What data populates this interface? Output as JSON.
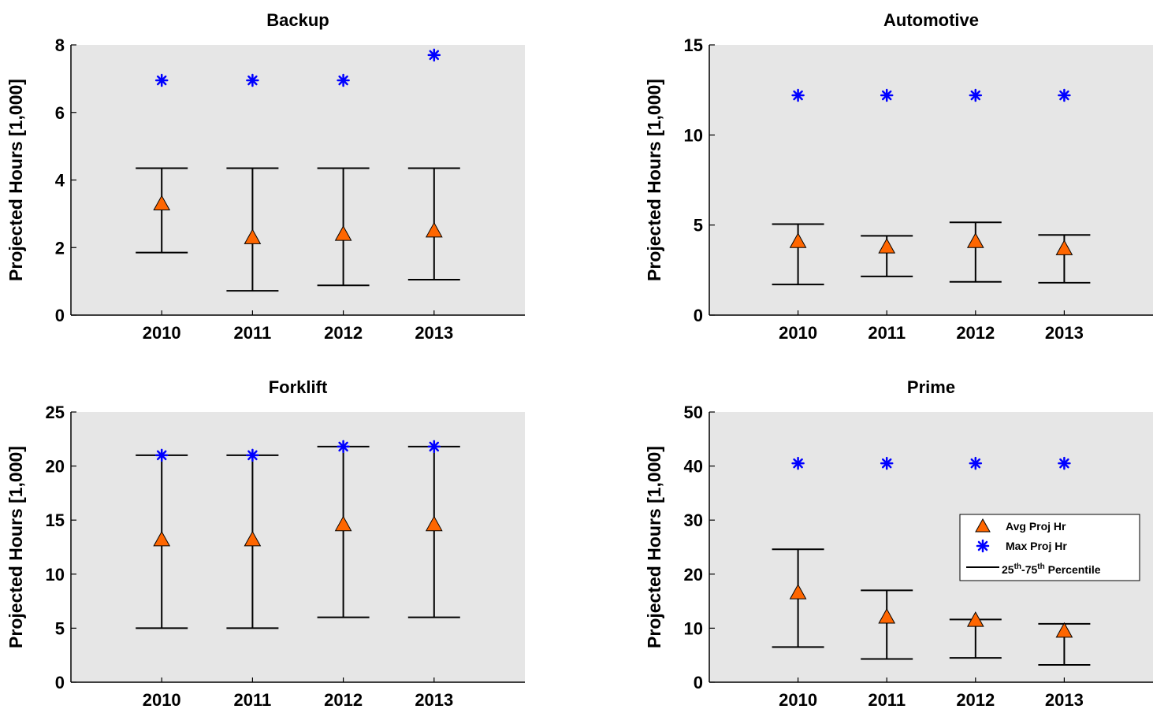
{
  "colors": {
    "axes_background": "#e6e6e6",
    "avg_marker_fill": "#ff6600",
    "max_marker": "#0000ff",
    "whisker": "#000000"
  },
  "legend": {
    "entries": {
      "avg": "Avg Proj Hr",
      "max": "Max Proj Hr",
      "pct_num1": "25",
      "pct_sup1": "th",
      "pct_sep": "-75",
      "pct_sup2": "th",
      "pct_word": " Percentile"
    },
    "placement": "Prime panel, middle-right",
    "avg_icon": "orange-triangle-icon",
    "max_icon": "blue-asterisk-icon",
    "percentile_icon": "black-line-icon"
  },
  "chart_data": [
    {
      "type": "errorbar",
      "title": "Backup",
      "xlabel": "",
      "ylabel": "Projected Hours [1,000]",
      "categories": [
        "2010",
        "2011",
        "2012",
        "2013"
      ],
      "xlim": [
        0,
        5
      ],
      "ylim": [
        0,
        8
      ],
      "yticks": [
        0,
        2,
        4,
        6,
        8
      ],
      "grid": false,
      "series": [
        {
          "name": "Avg Proj Hr",
          "values": [
            3.3,
            2.3,
            2.4,
            2.5
          ]
        },
        {
          "name": "Max Proj Hr",
          "values": [
            6.95,
            6.95,
            6.95,
            7.7
          ]
        },
        {
          "name": "25th-75th Percentile",
          "low": [
            1.85,
            0.72,
            0.88,
            1.05
          ],
          "high": [
            4.35,
            4.35,
            4.35,
            4.35
          ]
        }
      ]
    },
    {
      "type": "errorbar",
      "title": "Automotive",
      "xlabel": "",
      "ylabel": "Projected Hours [1,000]",
      "categories": [
        "2010",
        "2011",
        "2012",
        "2013"
      ],
      "xlim": [
        0,
        5
      ],
      "ylim": [
        0,
        15
      ],
      "yticks": [
        0,
        5,
        10,
        15
      ],
      "grid": false,
      "series": [
        {
          "name": "Avg Proj Hr",
          "values": [
            4.1,
            3.8,
            4.1,
            3.7
          ]
        },
        {
          "name": "Max Proj Hr",
          "values": [
            12.2,
            12.2,
            12.2,
            12.2
          ]
        },
        {
          "name": "25th-75th Percentile",
          "low": [
            1.7,
            2.15,
            1.85,
            1.8
          ],
          "high": [
            5.05,
            4.4,
            5.15,
            4.45
          ]
        }
      ]
    },
    {
      "type": "errorbar",
      "title": "Forklift",
      "xlabel": "",
      "ylabel": "Projected Hours [1,000]",
      "categories": [
        "2010",
        "2011",
        "2012",
        "2013"
      ],
      "xlim": [
        0,
        5
      ],
      "ylim": [
        0,
        25
      ],
      "yticks": [
        0,
        5,
        10,
        15,
        20,
        25
      ],
      "grid": false,
      "series": [
        {
          "name": "Avg Proj Hr",
          "values": [
            13.2,
            13.2,
            14.6,
            14.6
          ]
        },
        {
          "name": "Max Proj Hr",
          "values": [
            21.0,
            21.0,
            21.8,
            21.8
          ]
        },
        {
          "name": "25th-75th Percentile",
          "low": [
            5.0,
            5.0,
            6.0,
            6.0
          ],
          "high": [
            21.0,
            21.0,
            21.8,
            21.8
          ]
        }
      ]
    },
    {
      "type": "errorbar",
      "title": "Prime",
      "xlabel": "",
      "ylabel": "Projected Hours [1,000]",
      "categories": [
        "2010",
        "2011",
        "2012",
        "2013"
      ],
      "xlim": [
        0,
        5
      ],
      "ylim": [
        0,
        50
      ],
      "yticks": [
        0,
        10,
        20,
        30,
        40,
        50
      ],
      "grid": false,
      "series": [
        {
          "name": "Avg Proj Hr",
          "values": [
            16.6,
            12.1,
            11.5,
            9.5
          ]
        },
        {
          "name": "Max Proj Hr",
          "values": [
            40.5,
            40.5,
            40.5,
            40.5
          ]
        },
        {
          "name": "25th-75th Percentile",
          "low": [
            6.5,
            4.3,
            4.5,
            3.2
          ],
          "high": [
            24.6,
            17.0,
            11.6,
            10.8
          ]
        }
      ]
    }
  ]
}
